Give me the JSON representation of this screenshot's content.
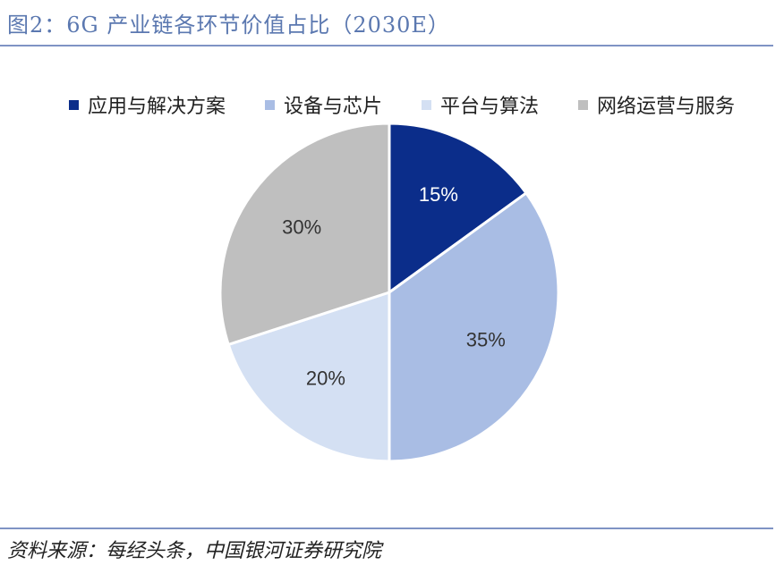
{
  "title": "图2：6G 产业链各环节价值占比（2030E）",
  "source": "资料来源：每经头条，中国银河证券研究院",
  "chart_data": {
    "type": "pie",
    "title": "图2：6G 产业链各环节价值占比（2030E）",
    "start_angle_deg": 90,
    "direction": "clockwise",
    "legend_position": "top",
    "categories": [
      "应用与解决方案",
      "设备与芯片",
      "平台与算法",
      "网络运营与服务"
    ],
    "values": [
      15,
      35,
      20,
      30
    ],
    "labels": [
      "15%",
      "35%",
      "20%",
      "30%"
    ],
    "colors": [
      "#0b2d8a",
      "#a9bde4",
      "#d4e0f3",
      "#bfbfbf"
    ],
    "label_colors": [
      "#ffffff",
      "#333333",
      "#333333",
      "#333333"
    ]
  }
}
